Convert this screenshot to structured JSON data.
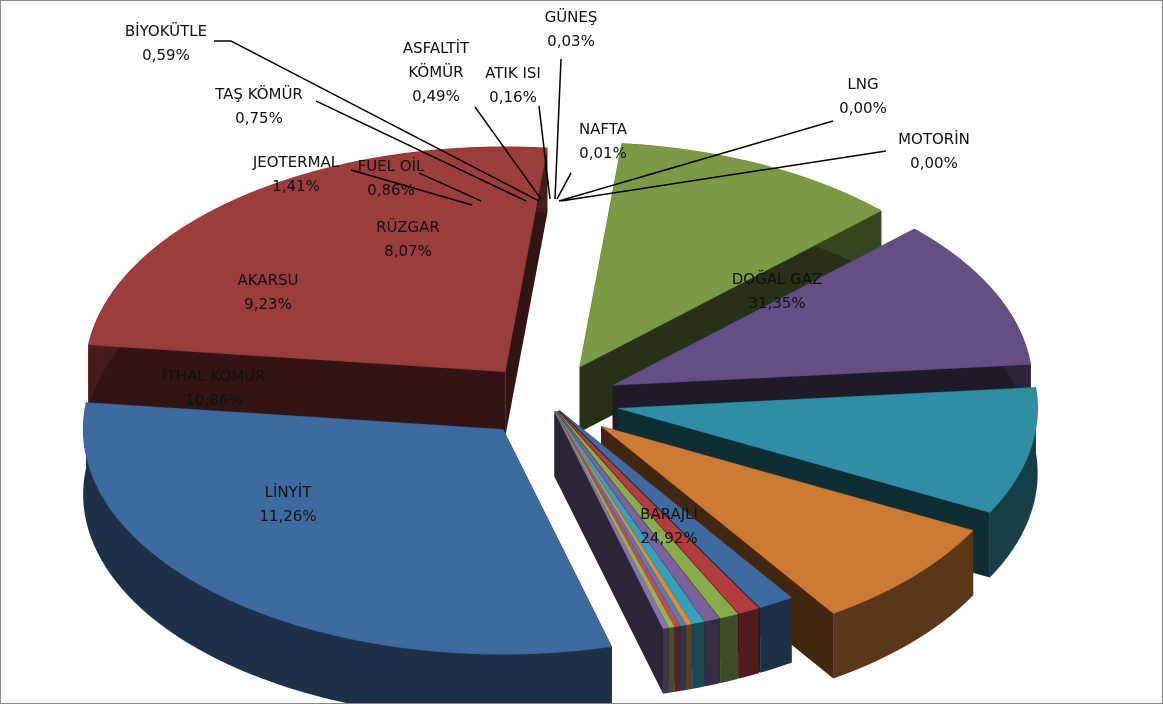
{
  "chart_data": {
    "type": "pie",
    "style": "exploded-3d",
    "title": "",
    "slices": [
      {
        "category": "DOĞAL GAZ",
        "value_label": "31,35%",
        "value": 31.35,
        "color": "#3f6aa0"
      },
      {
        "category": "BARAJLI",
        "value_label": "24,92%",
        "value": 24.92,
        "color": "#9b3d3b"
      },
      {
        "category": "LİNYİT",
        "value_label": "11,26%",
        "value": 11.26,
        "color": "#7a9a45"
      },
      {
        "category": "İTHAL KÖMÜR",
        "value_label": "10,86%",
        "value": 10.86,
        "color": "#644e83"
      },
      {
        "category": "AKARSU",
        "value_label": "9,23%",
        "value": 9.23,
        "color": "#2f8ea3"
      },
      {
        "category": "RÜZGAR",
        "value_label": "8,07%",
        "value": 8.07,
        "color": "#cc7a34"
      },
      {
        "category": "JEOTERMAL",
        "value_label": "1,41%",
        "value": 1.41,
        "color": "#3f6aa0"
      },
      {
        "category": "FUEL OİL",
        "value_label": "0,86%",
        "value": 0.86,
        "color": "#b33c3c"
      },
      {
        "category": "TAŞ KÖMÜR",
        "value_label": "0,75%",
        "value": 0.75,
        "color": "#8aab4b"
      },
      {
        "category": "BİYOKÜTLE",
        "value_label": "0,59%",
        "value": 0.59,
        "color": "#7b61a0"
      },
      {
        "category": "ASFALTİT KÖMÜR",
        "value_label": "0,49%",
        "value": 0.49,
        "color": "#35a0b8"
      },
      {
        "category": "ATIK ISI",
        "value_label": "0,16%",
        "value": 0.16,
        "color": "#e08a3c"
      },
      {
        "category": "GÜNEŞ",
        "value_label": "0,03%",
        "value": 0.03,
        "color": "#4f7fbf"
      },
      {
        "category": "NAFTA",
        "value_label": "0,01%",
        "value": 0.01,
        "color": "#c04b49"
      },
      {
        "category": "LNG",
        "value_label": "0,00%",
        "value": 0.0,
        "color": "#93b35a"
      },
      {
        "category": "MOTORİN",
        "value_label": "0,00%",
        "value": 0.0,
        "color": "#8a73ae"
      }
    ]
  }
}
